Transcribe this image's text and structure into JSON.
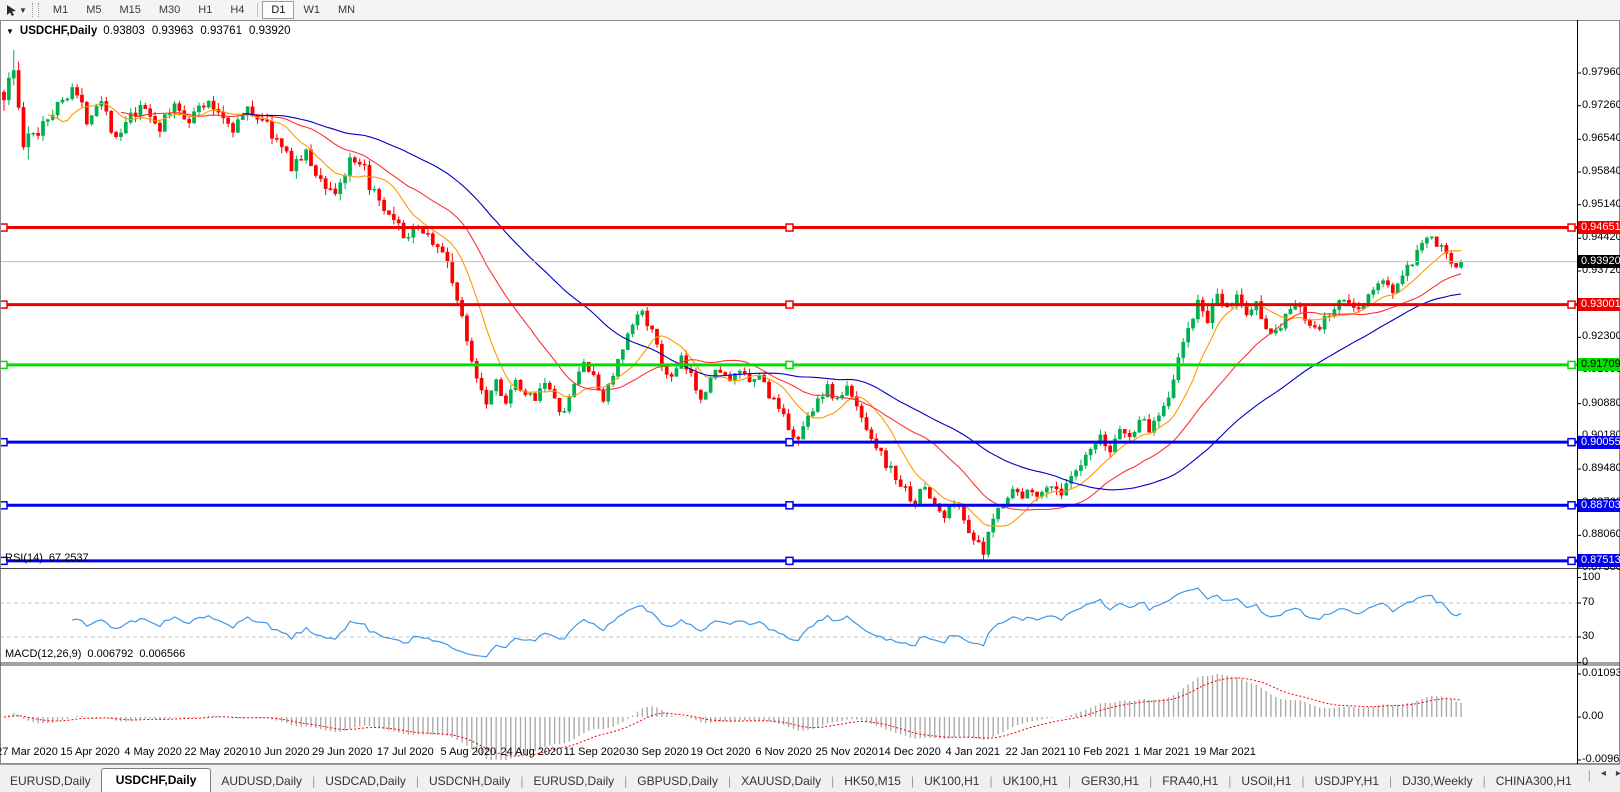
{
  "toolbar": {
    "cursor_tool": "pointer",
    "timeframes": [
      {
        "label": "M1",
        "active": false
      },
      {
        "label": "M5",
        "active": false
      },
      {
        "label": "M15",
        "active": false
      },
      {
        "label": "M30",
        "active": false
      },
      {
        "label": "H1",
        "active": false
      },
      {
        "label": "H4",
        "active": false
      },
      {
        "label": "D1",
        "active": true
      },
      {
        "label": "W1",
        "active": false
      },
      {
        "label": "MN",
        "active": false
      }
    ]
  },
  "chart": {
    "symbol": "USDCHF,Daily",
    "open": "0.93803",
    "high": "0.93963",
    "low": "0.93761",
    "close": "0.93920"
  },
  "indicators": {
    "rsi": {
      "label": "RSI(14)",
      "value": "67.2537",
      "line_color": "#3f96e8",
      "levels": [
        70,
        30
      ],
      "scale_labels": [
        "100",
        "70",
        "30",
        "0"
      ],
      "scale_values": [
        100,
        70,
        30,
        0
      ]
    },
    "macd": {
      "label": "MACD(12,26,9)",
      "value_main": "0.006792",
      "value_signal": "0.006566",
      "hist_color": "#ababab",
      "signal_color": "#ff0000",
      "scale_labels": [
        "0.010933",
        "0.00",
        "-0.009653"
      ],
      "scale_max": 0.010933,
      "scale_min": -0.009653
    }
  },
  "chart_data": {
    "type": "candlestick",
    "symbol": "USDCHF",
    "timeframe": "Daily",
    "last_candle": {
      "open": 0.93803,
      "high": 0.93963,
      "low": 0.93761,
      "close": 0.9392
    },
    "ylim": [
      0.8736,
      0.9867
    ],
    "price_axis_ticks": [
      "0.97960",
      "0.97260",
      "0.96540",
      "0.95840",
      "0.95140",
      "0.94420",
      "0.93720",
      "0.93020",
      "0.92300",
      "0.91600",
      "0.90880",
      "0.90180",
      "0.89480",
      "0.88760",
      "0.88060",
      "0.87360"
    ],
    "x_axis_labels": [
      "27 Mar 2020",
      "15 Apr 2020",
      "4 May 2020",
      "22 May 2020",
      "10 Jun 2020",
      "29 Jun 2020",
      "17 Jul 2020",
      "5 Aug 2020",
      "24 Aug 2020",
      "11 Sep 2020",
      "30 Sep 2020",
      "19 Oct 2020",
      "6 Nov 2020",
      "25 Nov 2020",
      "14 Dec 2020",
      "4 Jan 2021",
      "22 Jan 2021",
      "10 Feb 2021",
      "1 Mar 2021",
      "19 Mar 2021"
    ],
    "horizontal_lines": [
      {
        "price": 0.94651,
        "label": "0.94651",
        "color": "#ee0000",
        "text_color": "#ffffff"
      },
      {
        "price": 0.93001,
        "label": "0.93001",
        "color": "#ee0000",
        "text_color": "#ffffff"
      },
      {
        "price": 0.91709,
        "label": "0.91709",
        "color": "#00dd00",
        "text_color": "#000000"
      },
      {
        "price": 0.90055,
        "label": "0.90055",
        "color": "#0000ee",
        "text_color": "#ffffff"
      },
      {
        "price": 0.88703,
        "label": "0.88703",
        "color": "#0000ee",
        "text_color": "#ffffff"
      },
      {
        "price": 0.87513,
        "label": "0.87513",
        "color": "#0000ee",
        "text_color": "#ffffff"
      }
    ],
    "current_price": {
      "value": "0.93920",
      "price": 0.9392,
      "line_color": "#c0c0c0",
      "label_bg": "#000000",
      "label_text": "#ffffff"
    },
    "candle_up_color": "#00b050",
    "candle_down_color": "#fe0000",
    "moving_averages": [
      {
        "period": 10,
        "color": "#ff9900"
      },
      {
        "period": 25,
        "color": "#ff3232"
      },
      {
        "period": 50,
        "color": "#0000c8"
      }
    ],
    "bars_total": 300,
    "price_path": [
      [
        0,
        0.9755
      ],
      [
        2,
        0.98
      ],
      [
        4,
        0.964
      ],
      [
        6,
        0.966
      ],
      [
        8,
        0.9695
      ],
      [
        11,
        0.9725
      ],
      [
        14,
        0.977
      ],
      [
        17,
        0.97
      ],
      [
        20,
        0.9745
      ],
      [
        23,
        0.965
      ],
      [
        26,
        0.97
      ],
      [
        29,
        0.972
      ],
      [
        32,
        0.968
      ],
      [
        35,
        0.9725
      ],
      [
        38,
        0.97
      ],
      [
        41,
        0.973
      ],
      [
        44,
        0.9715
      ],
      [
        47,
        0.968
      ],
      [
        50,
        0.9715
      ],
      [
        53,
        0.97
      ],
      [
        56,
        0.965
      ],
      [
        59,
        0.96
      ],
      [
        62,
        0.962
      ],
      [
        65,
        0.9565
      ],
      [
        68,
        0.954
      ],
      [
        71,
        0.96
      ],
      [
        74,
        0.9585
      ],
      [
        77,
        0.951
      ],
      [
        80,
        0.947
      ],
      [
        83,
        0.9445
      ],
      [
        86,
        0.9465
      ],
      [
        89,
        0.942
      ],
      [
        91,
        0.9395
      ],
      [
        93,
        0.931
      ],
      [
        95,
        0.922
      ],
      [
        97,
        0.915
      ],
      [
        99,
        0.9095
      ],
      [
        101,
        0.914
      ],
      [
        103,
        0.909
      ],
      [
        105,
        0.913
      ],
      [
        107,
        0.91
      ],
      [
        109,
        0.9105
      ],
      [
        111,
        0.914
      ],
      [
        113,
        0.909
      ],
      [
        115,
        0.9065
      ],
      [
        117,
        0.913
      ],
      [
        119,
        0.918
      ],
      [
        121,
        0.914
      ],
      [
        123,
        0.91
      ],
      [
        125,
        0.915
      ],
      [
        127,
        0.92
      ],
      [
        129,
        0.9255
      ],
      [
        131,
        0.929
      ],
      [
        133,
        0.924
      ],
      [
        135,
        0.917
      ],
      [
        137,
        0.914
      ],
      [
        139,
        0.918
      ],
      [
        141,
        0.9145
      ],
      [
        143,
        0.9105
      ],
      [
        145,
        0.914
      ],
      [
        147,
        0.9165
      ],
      [
        149,
        0.913
      ],
      [
        151,
        0.916
      ],
      [
        153,
        0.9125
      ],
      [
        155,
        0.915
      ],
      [
        157,
        0.911
      ],
      [
        159,
        0.907
      ],
      [
        161,
        0.904
      ],
      [
        163,
        0.901
      ],
      [
        165,
        0.906
      ],
      [
        167,
        0.91
      ],
      [
        169,
        0.912
      ],
      [
        171,
        0.9095
      ],
      [
        173,
        0.912
      ],
      [
        175,
        0.908
      ],
      [
        177,
        0.904
      ],
      [
        179,
        0.9
      ],
      [
        181,
        0.896
      ],
      [
        183,
        0.893
      ],
      [
        185,
        0.89
      ],
      [
        187,
        0.888
      ],
      [
        189,
        0.891
      ],
      [
        191,
        0.887
      ],
      [
        193,
        0.8845
      ],
      [
        195,
        0.888
      ],
      [
        197,
        0.884
      ],
      [
        199,
        0.88
      ],
      [
        201,
        0.8765
      ],
      [
        203,
        0.884
      ],
      [
        205,
        0.888
      ],
      [
        207,
        0.8905
      ],
      [
        209,
        0.8885
      ],
      [
        211,
        0.891
      ],
      [
        213,
        0.889
      ],
      [
        215,
        0.892
      ],
      [
        217,
        0.8895
      ],
      [
        219,
        0.8925
      ],
      [
        221,
        0.895
      ],
      [
        223,
        0.8985
      ],
      [
        225,
        0.901
      ],
      [
        227,
        0.8985
      ],
      [
        229,
        0.904
      ],
      [
        231,
        0.901
      ],
      [
        233,
        0.906
      ],
      [
        235,
        0.903
      ],
      [
        237,
        0.907
      ],
      [
        239,
        0.911
      ],
      [
        241,
        0.918
      ],
      [
        243,
        0.925
      ],
      [
        245,
        0.93
      ],
      [
        247,
        0.927
      ],
      [
        249,
        0.931
      ],
      [
        251,
        0.929
      ],
      [
        253,
        0.932
      ],
      [
        255,
        0.928
      ],
      [
        257,
        0.93
      ],
      [
        259,
        0.926
      ],
      [
        261,
        0.9235
      ],
      [
        263,
        0.928
      ],
      [
        265,
        0.93
      ],
      [
        267,
        0.927
      ],
      [
        269,
        0.924
      ],
      [
        271,
        0.9265
      ],
      [
        273,
        0.929
      ],
      [
        275,
        0.931
      ],
      [
        277,
        0.9285
      ],
      [
        279,
        0.931
      ],
      [
        281,
        0.933
      ],
      [
        283,
        0.935
      ],
      [
        285,
        0.933
      ],
      [
        287,
        0.936
      ],
      [
        289,
        0.939
      ],
      [
        291,
        0.942
      ],
      [
        293,
        0.9445
      ],
      [
        295,
        0.9415
      ],
      [
        297,
        0.94
      ],
      [
        299,
        0.9392
      ]
    ],
    "wick_extremes": [
      {
        "bar": 2,
        "high": 0.9845
      },
      {
        "bar": 163,
        "low": 0.8998
      },
      {
        "bar": 201,
        "low": 0.8752
      },
      {
        "bar": 293,
        "high": 0.9445
      }
    ]
  },
  "tabs": {
    "active_index": 1,
    "items": [
      "EURUSD,Daily",
      "USDCHF,Daily",
      "AUDUSD,Daily",
      "USDCAD,Daily",
      "USDCNH,Daily",
      "EURUSD,Daily",
      "GBPUSD,Daily",
      "XAUUSD,Daily",
      "HK50,M15",
      "UK100,H1",
      "UK100,H1",
      "GER30,H1",
      "FRA40,H1",
      "USOil,H1",
      "USDJPY,H1",
      "DJ30,Weekly",
      "CHINA300,H1"
    ],
    "scroll_left": "◂",
    "scroll_right": "▸"
  }
}
